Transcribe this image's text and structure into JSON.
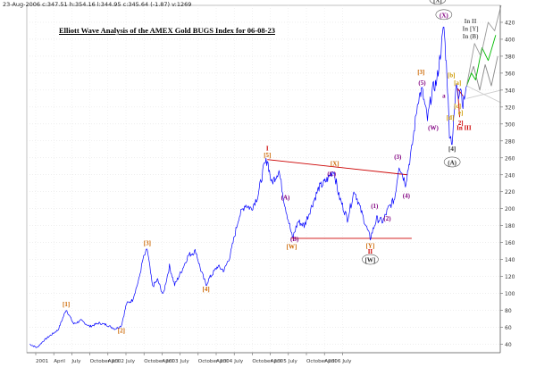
{
  "header": {
    "info": "23-Aug-2006 c:347.51 h:354.16 l:344.95 c:345.64 (-1.87) v:1269",
    "title": "Elliott Wave Analysis of the AMEX Gold BUGS Index for 06-08-23"
  },
  "chart_data": {
    "type": "line",
    "ylim": [
      30,
      440
    ],
    "yticks": [
      40,
      60,
      80,
      100,
      120,
      140,
      160,
      180,
      200,
      220,
      240,
      260,
      280,
      300,
      320,
      340,
      360,
      380,
      400,
      420
    ],
    "time_range": [
      "2000-11",
      "2007-02"
    ],
    "xtick_labels": [
      "2001",
      "April",
      "July",
      "October 2002",
      "April",
      "July",
      "October 2003",
      "April",
      "July",
      "October 2004",
      "April",
      "July",
      "October 2005",
      "April",
      "July",
      "October 2006",
      "April",
      "July"
    ],
    "series": [
      {
        "color": "#0000ff",
        "points": [
          [
            "2000-11-15",
            40
          ],
          [
            "2000-12-20",
            36
          ],
          [
            "2001-01-20",
            44
          ],
          [
            "2001-02-20",
            50
          ],
          [
            "2001-04-01",
            57
          ],
          [
            "2001-05-10",
            81
          ],
          [
            "2001-06-15",
            64
          ],
          [
            "2001-07-20",
            68
          ],
          [
            "2001-09-01",
            61
          ],
          [
            "2001-10-15",
            65
          ],
          [
            "2001-11-20",
            63
          ],
          [
            "2002-01-01",
            58
          ],
          [
            "2002-01-31",
            62
          ],
          [
            "2002-02-25",
            88
          ],
          [
            "2002-03-25",
            92
          ],
          [
            "2002-04-25",
            116
          ],
          [
            "2002-05-15",
            140
          ],
          [
            "2002-06-05",
            152
          ],
          [
            "2002-06-30",
            108
          ],
          [
            "2002-07-25",
            116
          ],
          [
            "2002-08-20",
            98
          ],
          [
            "2002-09-20",
            132
          ],
          [
            "2002-10-15",
            110
          ],
          [
            "2002-11-20",
            128
          ],
          [
            "2002-12-20",
            145
          ],
          [
            "2003-01-25",
            150
          ],
          [
            "2003-02-15",
            130
          ],
          [
            "2003-03-15",
            110
          ],
          [
            "2003-04-01",
            118
          ],
          [
            "2003-05-10",
            132
          ],
          [
            "2003-06-10",
            127
          ],
          [
            "2003-07-10",
            145
          ],
          [
            "2003-08-20",
            190
          ],
          [
            "2003-09-20",
            205
          ],
          [
            "2003-10-20",
            200
          ],
          [
            "2003-11-20",
            215
          ],
          [
            "2003-12-20",
            250
          ],
          [
            "2004-01-05",
            258
          ],
          [
            "2004-01-25",
            230
          ],
          [
            "2004-03-01",
            245
          ],
          [
            "2004-03-25",
            210
          ],
          [
            "2004-05-05",
            165
          ],
          [
            "2004-06-01",
            185
          ],
          [
            "2004-07-01",
            180
          ],
          [
            "2004-08-01",
            200
          ],
          [
            "2004-09-10",
            225
          ],
          [
            "2004-10-15",
            233
          ],
          [
            "2004-11-20",
            246
          ],
          [
            "2004-12-15",
            215
          ],
          [
            "2005-01-25",
            188
          ],
          [
            "2005-02-28",
            222
          ],
          [
            "2005-04-01",
            197
          ],
          [
            "2005-05-15",
            165
          ],
          [
            "2005-06-15",
            188
          ],
          [
            "2005-07-15",
            185
          ],
          [
            "2005-08-10",
            200
          ],
          [
            "2005-09-10",
            212
          ],
          [
            "2005-10-01",
            252
          ],
          [
            "2005-11-01",
            230
          ],
          [
            "2005-12-01",
            270
          ],
          [
            "2006-01-01",
            330
          ],
          [
            "2006-01-20",
            340
          ],
          [
            "2006-02-15",
            305
          ],
          [
            "2006-03-10",
            340
          ],
          [
            "2006-04-01",
            350
          ],
          [
            "2006-05-05",
            415
          ],
          [
            "2006-05-20",
            360
          ],
          [
            "2006-06-01",
            290
          ],
          [
            "2006-06-14",
            278
          ],
          [
            "2006-07-05",
            350
          ],
          [
            "2006-07-15",
            335
          ],
          [
            "2006-07-25",
            345
          ],
          [
            "2006-08-05",
            322
          ],
          [
            "2006-08-23",
            345
          ]
        ]
      },
      {
        "name": "In II",
        "color": "#888888",
        "points": [
          [
            "2006-08-23",
            345
          ],
          [
            "2006-09-25",
            368
          ],
          [
            "2006-10-25",
            340
          ],
          [
            "2006-11-20",
            370
          ],
          [
            "2006-12-20",
            345
          ],
          [
            "2007-01-20",
            380
          ]
        ]
      },
      {
        "name": "In [Y]",
        "color": "#00bb00",
        "points": [
          [
            "2006-08-23",
            345
          ],
          [
            "2006-09-15",
            360
          ],
          [
            "2006-10-05",
            352
          ],
          [
            "2006-11-05",
            390
          ],
          [
            "2006-12-05",
            375
          ],
          [
            "2007-01-10",
            405
          ]
        ]
      },
      {
        "name": "In (B)",
        "color": "#999999",
        "points": [
          [
            "2006-08-23",
            345
          ],
          [
            "2006-09-30",
            395
          ],
          [
            "2006-10-30",
            380
          ],
          [
            "2006-12-05",
            420
          ],
          [
            "2007-01-05",
            410
          ],
          [
            "2007-02-05",
            440
          ]
        ]
      }
    ],
    "trendlines": [
      {
        "color": "#cc0000",
        "points": [
          [
            "2004-01-05",
            258
          ],
          [
            "2005-11-10",
            240
          ]
        ]
      },
      {
        "color": "#cc0000",
        "points": [
          [
            "2004-05-01",
            165
          ],
          [
            "2005-12-01",
            165
          ]
        ]
      },
      {
        "color": "#cc0000",
        "points": [
          [
            "2006-07-10",
            342
          ],
          [
            "2006-08-05",
            333
          ]
        ]
      },
      {
        "color": "#cc0000",
        "points": [
          [
            "2006-07-10",
            342
          ],
          [
            "2006-07-20",
            308
          ]
        ]
      },
      {
        "color": "#cccccc",
        "points": [
          [
            "2006-08-23",
            345
          ],
          [
            "2007-02-05",
            325
          ]
        ]
      },
      {
        "color": "#cccccc",
        "points": [
          [
            "2006-08-23",
            330
          ],
          [
            "2007-02-05",
            340
          ]
        ]
      }
    ],
    "labels": [
      {
        "text": "[1]",
        "date": "2001-05-10",
        "y": 86,
        "color": "#cc6600"
      },
      {
        "text": "[2]",
        "date": "2002-01-31",
        "y": 55,
        "color": "#cc6600"
      },
      {
        "text": "[3]",
        "date": "2002-06-05",
        "y": 158,
        "color": "#cc6600"
      },
      {
        "text": "[4]",
        "date": "2003-03-15",
        "y": 104,
        "color": "#cc6600"
      },
      {
        "text": "I",
        "date": "2004-01-05",
        "y": 270,
        "color": "#cc0000"
      },
      {
        "text": "[5]",
        "date": "2004-01-05",
        "y": 262,
        "color": "#cc6600"
      },
      {
        "text": "(A)",
        "date": "2004-04-01",
        "y": 212,
        "color": "#800080"
      },
      {
        "text": "(B)",
        "date": "2004-05-15",
        "y": 163,
        "color": "#800080"
      },
      {
        "text": "[W]",
        "date": "2004-05-01",
        "y": 154,
        "color": "#cc6600"
      },
      {
        "text": "[X]",
        "date": "2004-11-25",
        "y": 252,
        "color": "#cc6600"
      },
      {
        "text": "(C)",
        "date": "2004-11-10",
        "y": 240,
        "color": "#800080"
      },
      {
        "text": "(1)",
        "date": "2005-06-05",
        "y": 202,
        "color": "#800080"
      },
      {
        "text": "[Y]",
        "date": "2005-05-15",
        "y": 155,
        "color": "#cc6600"
      },
      {
        "text": "II",
        "date": "2005-05-15",
        "y": 148,
        "color": "#cc0000"
      },
      {
        "text": "[W]",
        "date": "2005-05-15",
        "y": 138,
        "color": "#333333",
        "oval": true
      },
      {
        "text": "(2)",
        "date": "2005-08-05",
        "y": 187,
        "color": "#800080"
      },
      {
        "text": "(3)",
        "date": "2005-09-25",
        "y": 260,
        "color": "#800080"
      },
      {
        "text": "(4)",
        "date": "2005-11-05",
        "y": 214,
        "color": "#800080"
      },
      {
        "text": "[3]",
        "date": "2006-01-15",
        "y": 360,
        "color": "#cc6600"
      },
      {
        "text": "(5)",
        "date": "2006-01-20",
        "y": 347,
        "color": "#800080"
      },
      {
        "text": "[X]",
        "date": "2006-04-05",
        "y": 445,
        "color": "#333333",
        "oval": true
      },
      {
        "text": "(X)",
        "date": "2006-05-05",
        "y": 427,
        "color": "#800080",
        "oval": true
      },
      {
        "text": "(W)",
        "date": "2006-03-15",
        "y": 294,
        "color": "#800080"
      },
      {
        "text": "[b]",
        "date": "2006-06-10",
        "y": 356,
        "color": "#cc9900"
      },
      {
        "text": "a",
        "date": "2006-05-05",
        "y": 332,
        "color": "#800080"
      },
      {
        "text": "[a]",
        "date": "2006-07-10",
        "y": 347,
        "color": "#cc9900"
      },
      {
        "text": "[c]",
        "date": "2006-07-10",
        "y": 320,
        "color": "#cc9900"
      },
      {
        "text": "e]",
        "date": "2006-07-25",
        "y": 312,
        "color": "#cc9900"
      },
      {
        "text": "[d]",
        "date": "2006-06-05",
        "y": 306,
        "color": "#cc9900"
      },
      {
        "text": "[4]",
        "date": "2006-06-14",
        "y": 269,
        "color": "#333333"
      },
      {
        "text": "(A)",
        "date": "2006-06-14",
        "y": 253,
        "color": "#333333",
        "oval": true
      },
      {
        "text": "2]",
        "date": "2006-07-25",
        "y": 300,
        "color": "#cc0000"
      },
      {
        "text": "In III",
        "date": "2006-08-10",
        "y": 294,
        "color": "#cc0000"
      },
      {
        "text": "In II",
        "date": "2006-09-10",
        "y": 420,
        "color": "#666666"
      },
      {
        "text": "In [Y]",
        "date": "2006-09-10",
        "y": 411,
        "color": "#666666"
      },
      {
        "text": "In (B)",
        "date": "2006-09-10",
        "y": 402,
        "color": "#666666"
      }
    ]
  }
}
